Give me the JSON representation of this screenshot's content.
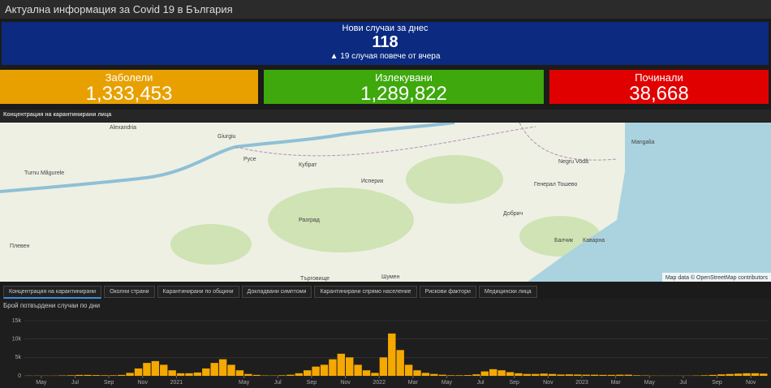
{
  "header": {
    "title": "Актуална информация за Covid 19 в България"
  },
  "today": {
    "label": "Нови случаи за днес",
    "value": "118",
    "change": "▲ 19 случая повече от вчера"
  },
  "cards": [
    {
      "label": "Заболели",
      "value": "1,333,453"
    },
    {
      "label": "Излекувани",
      "value": "1,289,822"
    },
    {
      "label": "Починали",
      "value": "38,668"
    }
  ],
  "map": {
    "title": "Концентрация на карантинирани лица",
    "attribution": "Map data © OpenStreetMap contributors",
    "places": [
      "Alexandria",
      "Giurgiu",
      "Turnu Măgurele",
      "Русе",
      "Разград",
      "Търговище",
      "Шумен",
      "Добрич",
      "Плевен",
      "Mangalia",
      "Negru Vodă",
      "Балчик",
      "Каварна",
      "Кубрат",
      "Исперих",
      "Генерал Тошево"
    ]
  },
  "tabs": [
    "Концентрация на карантинирани",
    "Околни страни",
    "Карантинирани по общини",
    "Докладвани симптоми",
    "Карантинирани спрямо население",
    "Рискови фактори",
    "Медицински лица"
  ],
  "chart_data": {
    "type": "bar",
    "title": "Брой потвърдени случаи по дни",
    "color": "#f5a800",
    "categories": [
      null,
      null,
      "May",
      null,
      null,
      null,
      "Jul",
      null,
      null,
      null,
      "Sep",
      null,
      null,
      null,
      "Nov",
      null,
      null,
      null,
      "2021",
      null,
      null,
      null,
      null,
      null,
      null,
      null,
      "May",
      null,
      null,
      null,
      "Jul",
      null,
      null,
      null,
      "Sep",
      null,
      null,
      null,
      "Nov",
      null,
      null,
      null,
      "2022",
      null,
      null,
      null,
      "Mar",
      null,
      null,
      null,
      "May",
      null,
      null,
      null,
      "Jul",
      null,
      null,
      null,
      "Sep",
      null,
      null,
      null,
      "Nov",
      null,
      null,
      null,
      "2023",
      null,
      null,
      null,
      "Mar",
      null,
      null,
      null,
      "May",
      null,
      null,
      null,
      "Jul",
      null,
      null,
      null,
      "Sep",
      null,
      null,
      null,
      "Nov",
      null
    ],
    "values": [
      50,
      50,
      50,
      50,
      100,
      150,
      250,
      250,
      200,
      150,
      150,
      250,
      800,
      2000,
      3500,
      4000,
      3000,
      1500,
      700,
      700,
      900,
      2000,
      3500,
      4500,
      3000,
      1500,
      500,
      250,
      100,
      80,
      150,
      300,
      700,
      1500,
      2500,
      3000,
      4500,
      6000,
      5000,
      3000,
      1500,
      800,
      5000,
      11500,
      7000,
      3000,
      1500,
      800,
      500,
      300,
      150,
      150,
      200,
      400,
      1200,
      1800,
      1500,
      1000,
      700,
      500,
      500,
      600,
      500,
      350,
      400,
      350,
      300,
      300,
      250,
      250,
      300,
      300,
      150,
      100,
      50,
      50,
      50,
      50,
      50,
      80,
      150,
      250,
      400,
      500,
      600,
      700,
      700,
      600
    ],
    "ylim": [
      0,
      15000
    ],
    "yticks": [
      0,
      {
        "value": 5000,
        "label": "5k"
      },
      {
        "value": 10000,
        "label": "10k"
      },
      {
        "value": 15000,
        "label": "15k"
      }
    ],
    "grid": true
  }
}
